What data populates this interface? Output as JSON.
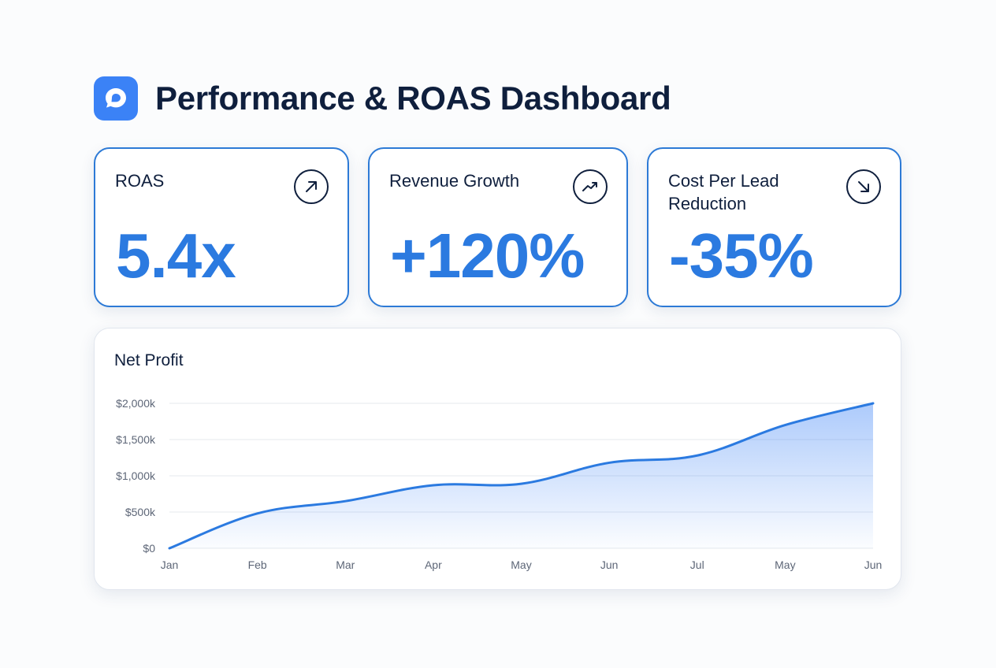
{
  "header": {
    "title": "Performance & ROAS Dashboard",
    "logo_icon": "chat-bubble-icon"
  },
  "kpis": [
    {
      "label": "ROAS",
      "value": "5.4x",
      "icon": "arrow-up-right-icon"
    },
    {
      "label": "Revenue Growth",
      "value": "+120%",
      "icon": "trending-up-icon"
    },
    {
      "label": "Cost Per Lead Reduction",
      "value": "-35%",
      "icon": "arrow-down-right-icon"
    }
  ],
  "colors": {
    "accent": "#2b7ae0",
    "card_border": "#2d7ad6",
    "text": "#0f1f3d",
    "logo_bg": "#3b82f6"
  },
  "chart_data": {
    "type": "area",
    "title": "Net Profit",
    "categories": [
      "Jan",
      "Feb",
      "Mar",
      "Apr",
      "May",
      "Jun",
      "Jul",
      "May",
      "Jun"
    ],
    "series": [
      {
        "name": "Net Profit",
        "values": [
          0,
          480,
          650,
          870,
          890,
          1180,
          1280,
          1700,
          2000
        ]
      }
    ],
    "ylim": [
      0,
      2000
    ],
    "yticks": [
      0,
      500,
      1000,
      1500,
      2000
    ],
    "ytick_labels": [
      "$0",
      "$500k",
      "$1,000k",
      "$1,500k",
      "$2,000k"
    ],
    "grid": true,
    "xlabel": "",
    "ylabel": ""
  }
}
